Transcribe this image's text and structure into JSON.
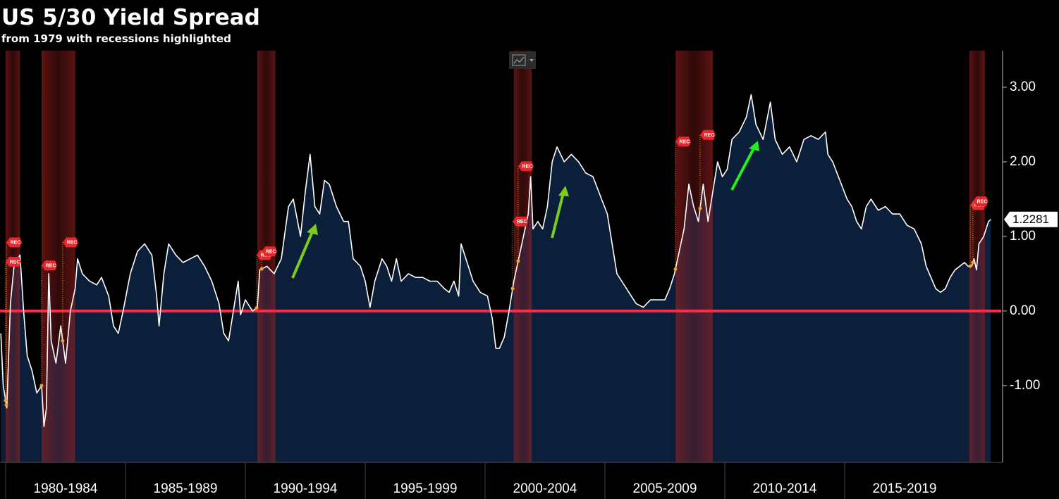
{
  "chart_data": {
    "type": "area",
    "title": "US 5/30 Yield Spread",
    "subtitle": "from 1979 with recessions highlighted",
    "x": [
      1979.8,
      1979.9,
      1980.05,
      1980.2,
      1980.35,
      1980.5,
      1980.6,
      1980.75,
      1980.9,
      1981.1,
      1981.3,
      1981.5,
      1981.6,
      1981.7,
      1981.8,
      1981.9,
      1982.1,
      1982.3,
      1982.5,
      1982.7,
      1982.9,
      1983.0,
      1983.2,
      1983.5,
      1983.8,
      1984.0,
      1984.3,
      1984.5,
      1984.7,
      1984.9,
      1985.2,
      1985.5,
      1985.8,
      1986.1,
      1986.3,
      1986.4,
      1986.6,
      1986.8,
      1987.1,
      1987.4,
      1987.7,
      1988.0,
      1988.3,
      1988.6,
      1988.9,
      1989.1,
      1989.3,
      1989.5,
      1989.7,
      1989.8,
      1990.0,
      1990.3,
      1990.5,
      1990.6,
      1990.9,
      1991.2,
      1991.5,
      1991.8,
      1992.0,
      1992.3,
      1992.5,
      1992.7,
      1992.9,
      1993.1,
      1993.3,
      1993.5,
      1993.8,
      1994.1,
      1994.3,
      1994.5,
      1994.8,
      1995.0,
      1995.2,
      1995.4,
      1995.7,
      1995.9,
      1996.1,
      1996.3,
      1996.5,
      1996.8,
      1997.1,
      1997.4,
      1997.7,
      1998.0,
      1998.3,
      1998.5,
      1998.7,
      1998.9,
      1999.0,
      1999.3,
      1999.5,
      1999.8,
      2000.1,
      2000.3,
      2000.45,
      2000.6,
      2000.8,
      2001.0,
      2001.2,
      2001.4,
      2001.6,
      2001.8,
      2001.9,
      2002.0,
      2002.2,
      2002.4,
      2002.6,
      2002.8,
      2003.0,
      2003.3,
      2003.6,
      2003.9,
      2004.2,
      2004.5,
      2004.8,
      2005.1,
      2005.3,
      2005.5,
      2005.8,
      2006.0,
      2006.3,
      2006.6,
      2006.9,
      2007.2,
      2007.5,
      2007.7,
      2007.9,
      2008.1,
      2008.3,
      2008.5,
      2008.7,
      2008.9,
      2009.1,
      2009.3,
      2009.5,
      2009.7,
      2009.9,
      2010.1,
      2010.3,
      2010.6,
      2010.9,
      2011.1,
      2011.3,
      2011.6,
      2011.9,
      2012.1,
      2012.4,
      2012.7,
      2013.0,
      2013.3,
      2013.6,
      2013.9,
      2014.2,
      2014.3,
      2014.5,
      2014.8,
      2015.1,
      2015.3,
      2015.5,
      2015.7,
      2015.9,
      2016.1,
      2016.4,
      2016.7,
      2017.0,
      2017.3,
      2017.6,
      2017.9,
      2018.2,
      2018.4,
      2018.6,
      2018.8,
      2019.0,
      2019.2,
      2019.4,
      2019.6,
      2019.8,
      2020.0,
      2020.15,
      2020.3,
      2020.4,
      2020.5,
      2020.6,
      2020.8,
      2021.0,
      2021.1
    ],
    "values": [
      -0.3,
      -1.0,
      -1.3,
      0.1,
      0.6,
      0.7,
      0.75,
      0.0,
      -0.6,
      -0.8,
      -1.1,
      -1.0,
      -1.55,
      -1.3,
      0.5,
      -0.4,
      -0.7,
      -0.2,
      -0.7,
      0.0,
      0.3,
      0.7,
      0.5,
      0.4,
      0.35,
      0.45,
      0.2,
      -0.2,
      -0.3,
      0.0,
      0.5,
      0.8,
      0.9,
      0.75,
      0.2,
      -0.2,
      0.5,
      0.9,
      0.75,
      0.65,
      0.7,
      0.75,
      0.6,
      0.4,
      0.1,
      -0.3,
      -0.4,
      0.0,
      0.4,
      -0.05,
      0.15,
      0.0,
      0.05,
      0.55,
      0.6,
      0.5,
      0.7,
      1.4,
      1.5,
      1.0,
      1.6,
      2.1,
      1.4,
      1.3,
      1.75,
      1.7,
      1.4,
      1.2,
      1.2,
      0.7,
      0.6,
      0.4,
      0.05,
      0.4,
      0.7,
      0.6,
      0.4,
      0.7,
      0.4,
      0.5,
      0.45,
      0.45,
      0.4,
      0.4,
      0.3,
      0.25,
      0.4,
      0.2,
      0.9,
      0.6,
      0.4,
      0.25,
      0.2,
      -0.1,
      -0.5,
      -0.5,
      -0.35,
      0.0,
      0.4,
      0.7,
      1.0,
      1.3,
      1.8,
      1.1,
      1.2,
      1.1,
      1.4,
      2.0,
      2.2,
      2.0,
      2.1,
      2.0,
      1.85,
      1.8,
      1.55,
      1.3,
      0.9,
      0.5,
      0.35,
      0.25,
      0.1,
      0.05,
      0.15,
      0.15,
      0.15,
      0.3,
      0.5,
      0.8,
      1.1,
      1.7,
      1.4,
      1.2,
      1.7,
      1.2,
      1.6,
      2.0,
      1.8,
      1.9,
      2.3,
      2.4,
      2.6,
      2.9,
      2.5,
      2.3,
      2.8,
      2.3,
      2.1,
      2.2,
      2.0,
      2.3,
      2.35,
      2.3,
      2.4,
      2.1,
      2.0,
      1.75,
      1.5,
      1.4,
      1.2,
      1.1,
      1.4,
      1.5,
      1.35,
      1.4,
      1.3,
      1.3,
      1.15,
      1.1,
      0.9,
      0.6,
      0.45,
      0.3,
      0.25,
      0.3,
      0.45,
      0.55,
      0.6,
      0.65,
      0.6,
      0.6,
      0.7,
      0.55,
      0.9,
      1.0,
      1.2,
      1.2281
    ],
    "line_color": "#ffffff",
    "area_color": "#0b1f3b",
    "xlim": [
      1979.765,
      2021.53
    ],
    "xticks": [
      {
        "value": 1980,
        "label": "1980-1984"
      },
      {
        "value": 1985,
        "label": "1985-1989"
      },
      {
        "value": 1990,
        "label": "1990-1994"
      },
      {
        "value": 1995,
        "label": "1995-1999"
      },
      {
        "value": 2000,
        "label": "2000-2004"
      },
      {
        "value": 2005,
        "label": "2005-2009"
      },
      {
        "value": 2010,
        "label": "2010-2014"
      },
      {
        "value": 2015,
        "label": "2015-2019"
      }
    ],
    "ylim": [
      -2.03,
      3.49
    ],
    "yticks": [
      {
        "value": 3,
        "label": "3.00"
      },
      {
        "value": 2,
        "label": "2.00"
      },
      {
        "value": 1,
        "label": "1.00"
      },
      {
        "value": 0,
        "label": "0.00"
      },
      {
        "value": -1,
        "label": "-1.00"
      }
    ],
    "y_axis_side": "right",
    "reference_line": {
      "value": 0,
      "color": "#ff2b4a"
    },
    "recession_color": "#9a1f1f",
    "recessions": [
      {
        "start": 1980.0,
        "end": 1980.6
      },
      {
        "start": 1981.5,
        "end": 1982.9
      },
      {
        "start": 1990.5,
        "end": 1991.25
      },
      {
        "start": 2001.2,
        "end": 2001.95
      },
      {
        "start": 2007.95,
        "end": 2009.5
      },
      {
        "start": 2020.2,
        "end": 2020.85
      }
    ],
    "event_label": "REC",
    "event_color": "#e8262b",
    "events": [
      {
        "x": 1980.03,
        "y": 0.92
      },
      {
        "x": 1980.0,
        "y": 0.66
      },
      {
        "x": 1981.5,
        "y": 0.61
      },
      {
        "x": 1982.38,
        "y": 0.92
      },
      {
        "x": 1990.47,
        "y": 0.75
      },
      {
        "x": 1990.68,
        "y": 0.8
      },
      {
        "x": 2001.15,
        "y": 1.2
      },
      {
        "x": 2001.38,
        "y": 1.94
      },
      {
        "x": 2007.94,
        "y": 2.27
      },
      {
        "x": 2008.97,
        "y": 2.36
      },
      {
        "x": 2020.24,
        "y": 1.42
      },
      {
        "x": 2020.35,
        "y": 1.47
      }
    ]
  }
}
